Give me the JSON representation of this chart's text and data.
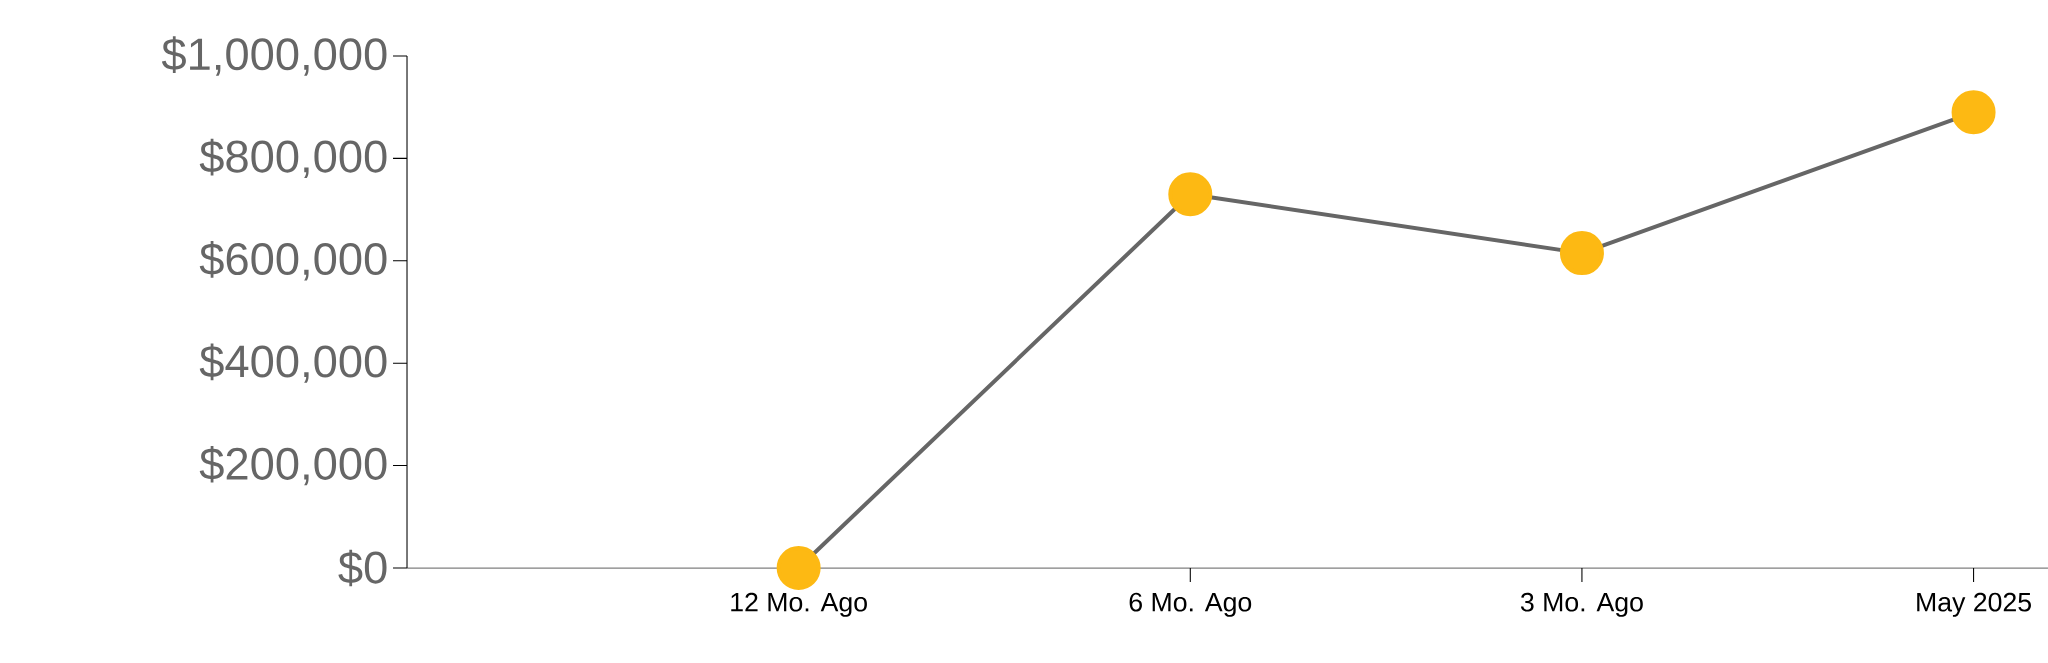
{
  "chart_data": {
    "type": "line",
    "categories": [
      null,
      "12 Mo. Ago",
      "6 Mo. Ago",
      "3 Mo. Ago",
      "May 2025"
    ],
    "series": [
      {
        "color": "#fdb913",
        "values": [
          null,
          0,
          730000,
          615000,
          890000
        ]
      }
    ],
    "ylim": [
      0,
      1000000
    ],
    "yticks": [
      {
        "value": 0,
        "label": "$0"
      },
      {
        "value": 200000,
        "label": "$200,000"
      },
      {
        "value": 400000,
        "label": "$400,000"
      },
      {
        "value": 600000,
        "label": "$600,000"
      },
      {
        "value": 800000,
        "label": "$800,000"
      },
      {
        "value": 1000000,
        "label": "$1,000,000"
      }
    ],
    "marker": "circle",
    "line_style": "solid"
  }
}
